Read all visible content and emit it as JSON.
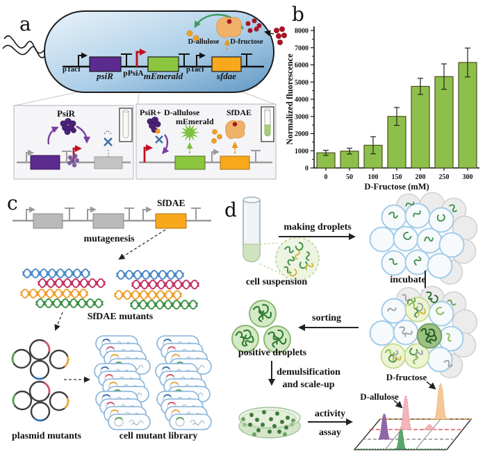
{
  "panel_a": {
    "label": "a",
    "promoter1": "pTacI",
    "gene1": "psiR",
    "promoter2": "pPsiA",
    "gene2": "mEmerald",
    "promoter3": "pTacI",
    "gene3": "sfdae",
    "allulose": "D-allulose",
    "fructose": "D-fructose",
    "box1_title": "PsiR",
    "box2_title_left": "PsiR+",
    "box2_title_right": "D-allulose",
    "box2_memerald": "mEmerald",
    "box2_sfdae": "SfDAE"
  },
  "panel_b": {
    "label": "b"
  },
  "chart_data": {
    "type": "bar",
    "categories": [
      "0",
      "50",
      "100",
      "150",
      "200",
      "250",
      "300"
    ],
    "values": [
      880,
      980,
      1320,
      3000,
      4750,
      5320,
      6140
    ],
    "errors": [
      150,
      170,
      500,
      520,
      470,
      740,
      840
    ],
    "xlabel": "D-Fructose (mM)",
    "ylabel": "Normalized fluorescence",
    "ylim": [
      0,
      8000
    ],
    "ytick_step": 1000,
    "grid": false,
    "legend": null,
    "bar_color": "#8dc04a",
    "bar_border": "#4a501e"
  },
  "panel_c": {
    "label": "c",
    "sfdae": "SfDAE",
    "step1": "mutagenesis",
    "mutants": "SfDAE mutants",
    "plasmids": "plasmid mutants",
    "library": "cell mutant library"
  },
  "panel_d": {
    "label": "d",
    "making_droplets": "making droplets",
    "cell_suspension": "cell suspension",
    "incubate": "incubate",
    "sorting": "sorting",
    "positive_droplets": "positive droplets",
    "demulsification_1": "demulsification",
    "demulsification_2": "and scale-up",
    "activity_1": "activity",
    "activity_2": "assay",
    "allulose": "D-allulose",
    "fructose": "D-fructose"
  },
  "colors": {
    "gene_purple": "#5b2b8f",
    "gene_green": "#8cc63f",
    "gene_orange": "#f7a81b",
    "promoter_red": "#c0111f",
    "bar_green": "#8dc04a",
    "dna_blue": "#4a89c8",
    "dna_crimson": "#c43364",
    "dna_orange": "#efa02f",
    "dna_green": "#3f9148"
  }
}
